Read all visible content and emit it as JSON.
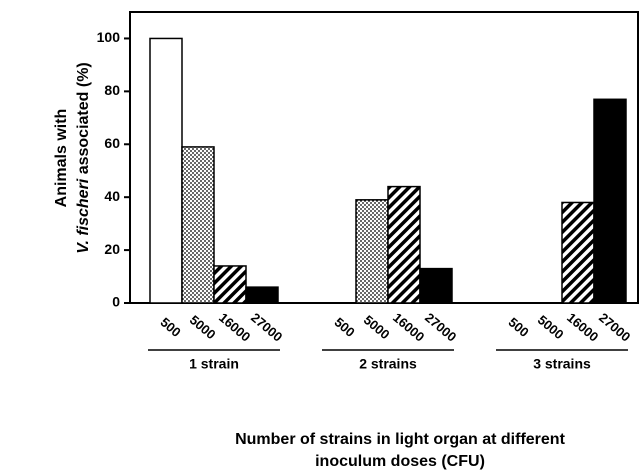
{
  "chart_data": {
    "type": "bar",
    "y_label_top": "Animals with",
    "y_label_italic": "V. fischeri",
    "y_label_rest": "associated (%)",
    "x_label_lines": [
      "Number of strains in light organ at different",
      "inoculum doses (CFU)"
    ],
    "categories": [
      "1 strain",
      "2 strains",
      "3 strains"
    ],
    "series": [
      {
        "name": "500",
        "fill": "white",
        "values": [
          100,
          0,
          0
        ]
      },
      {
        "name": "5000",
        "fill": "dots",
        "values": [
          59,
          39,
          0
        ]
      },
      {
        "name": "16000",
        "fill": "hatch",
        "values": [
          14,
          44,
          38
        ]
      },
      {
        "name": "27000",
        "fill": "black",
        "values": [
          6,
          13,
          77
        ]
      }
    ],
    "ylim": [
      0,
      110
    ],
    "yticks": [
      0,
      20,
      40,
      60,
      80,
      100
    ]
  }
}
